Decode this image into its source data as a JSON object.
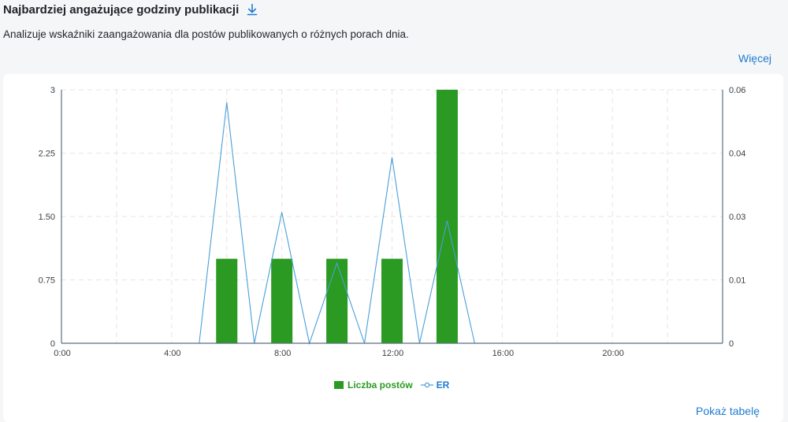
{
  "header": {
    "title": "Najbardziej angażujące godziny publikacji",
    "subtitle": "Analizuje wskaźniki zaangażowania dla postów publikowanych o różnych porach dnia.",
    "more_label": "Więcej",
    "download_icon": "download-icon"
  },
  "footer": {
    "show_table_label": "Pokaż tabelę"
  },
  "colors": {
    "bars": "#2a9a22",
    "line": "#4a9fd8",
    "link": "#1f7bd0"
  },
  "chart_data": {
    "type": "bar",
    "x_tick_labels": [
      "0:00",
      "4:00",
      "8:00",
      "12:00",
      "16:00",
      "20:00"
    ],
    "x_tick_hours": [
      0,
      4,
      8,
      12,
      16,
      20
    ],
    "xlim": [
      0,
      24
    ],
    "y_left_tick_labels": [
      "0",
      "0.75",
      "1.50",
      "2.25",
      "3"
    ],
    "y_left_ticks": [
      0,
      0.75,
      1.5,
      2.25,
      3
    ],
    "ylim_left": [
      0,
      3
    ],
    "y_right_tick_labels": [
      "0",
      "0.01",
      "0.03",
      "0.04",
      "0.06"
    ],
    "y_right_ticks": [
      0,
      0.015,
      0.03,
      0.045,
      0.06
    ],
    "ylim_right": [
      0,
      0.06
    ],
    "grid": true,
    "legend_position": "bottom-center",
    "series": [
      {
        "name": "Liczba postów",
        "type": "bar",
        "axis": "left",
        "x": [
          6,
          8,
          10,
          12,
          14
        ],
        "values": [
          1,
          1,
          1,
          1,
          3
        ]
      },
      {
        "name": "ER",
        "type": "line",
        "axis": "right",
        "x": [
          0,
          1,
          2,
          3,
          4,
          5,
          6,
          7,
          8,
          9,
          10,
          11,
          12,
          13,
          14,
          15,
          16,
          17,
          18,
          19,
          20,
          21,
          22,
          23
        ],
        "values": [
          0,
          0,
          0,
          0,
          0,
          0,
          0.057,
          0,
          0.031,
          0,
          0.019,
          0,
          0.044,
          0,
          0.029,
          0,
          0,
          0,
          0,
          0,
          0,
          0,
          0,
          0
        ]
      }
    ]
  }
}
